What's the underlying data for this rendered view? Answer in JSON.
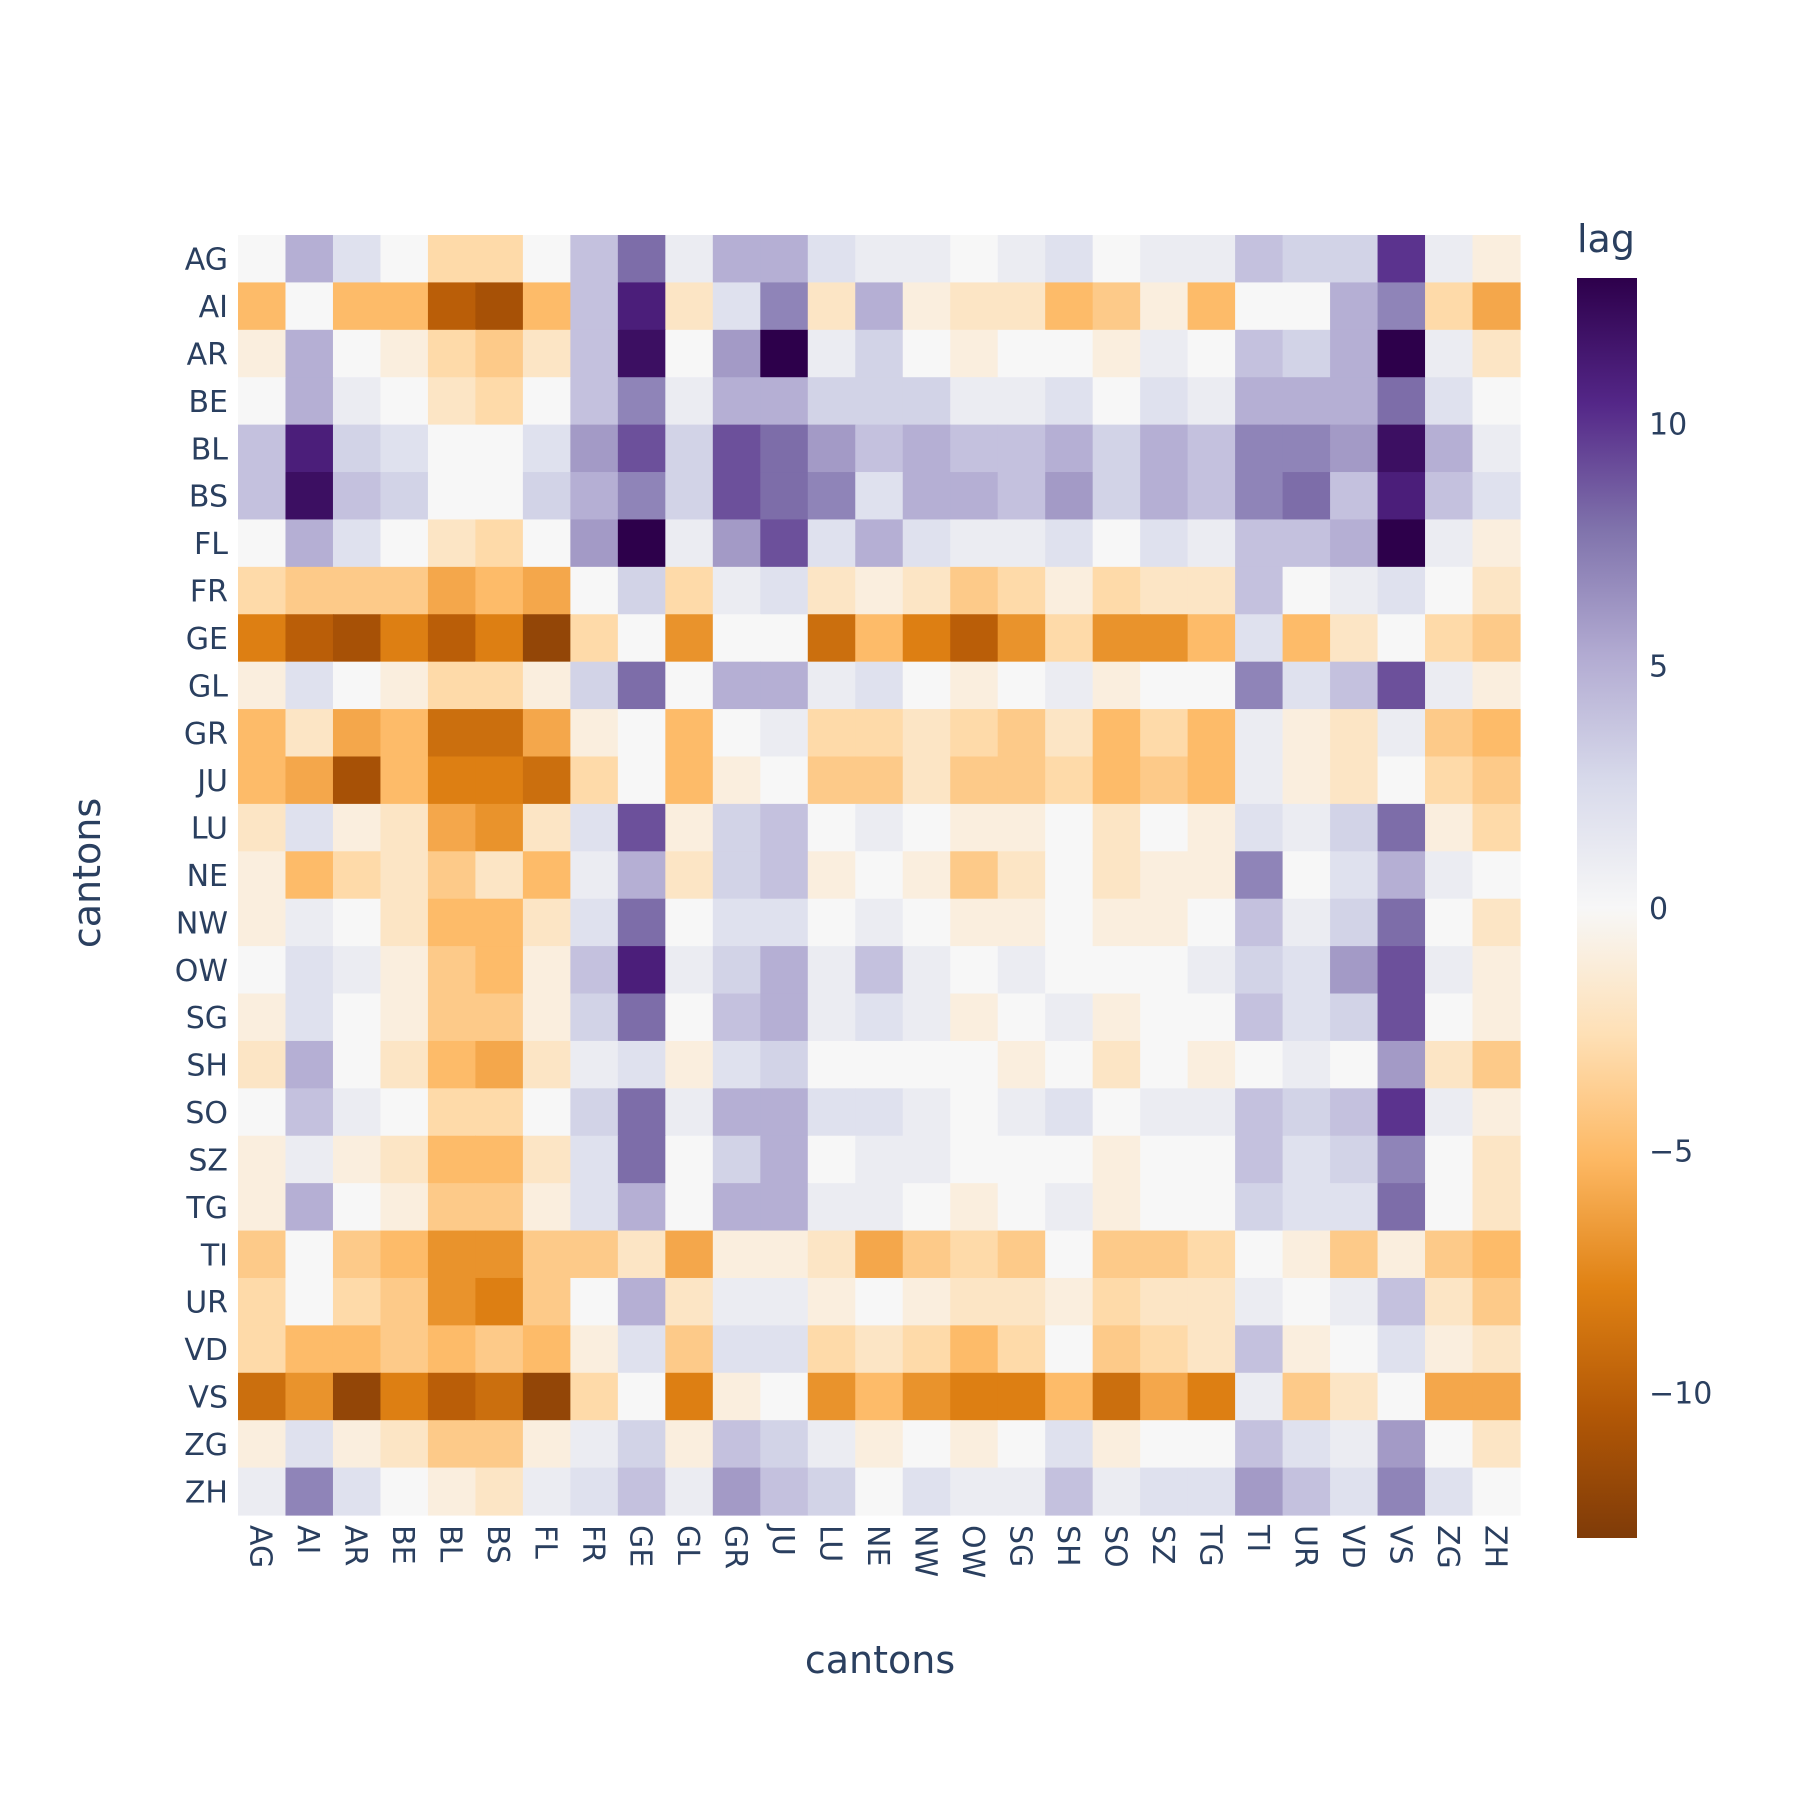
{
  "chart_data": {
    "type": "heatmap",
    "title": "",
    "xlabel": "cantons",
    "ylabel": "cantons",
    "colorbar_title": "lag",
    "colorscale": "PuOr",
    "zlim": [
      -13,
      13
    ],
    "colorbar_ticks": [
      10,
      5,
      0,
      -5,
      -10
    ],
    "colorbar_tick_labels": [
      "10",
      "5",
      "0",
      "−5",
      "−10"
    ],
    "x": [
      "AG",
      "AI",
      "AR",
      "BE",
      "BL",
      "BS",
      "FL",
      "FR",
      "GE",
      "GL",
      "GR",
      "JU",
      "LU",
      "NE",
      "NW",
      "OW",
      "SG",
      "SH",
      "SO",
      "SZ",
      "TG",
      "TI",
      "UR",
      "VD",
      "VS",
      "ZG",
      "ZH"
    ],
    "y": [
      "AG",
      "AI",
      "AR",
      "BE",
      "BL",
      "BS",
      "FL",
      "FR",
      "GE",
      "GL",
      "GR",
      "JU",
      "LU",
      "NE",
      "NW",
      "OW",
      "SG",
      "SH",
      "SO",
      "SZ",
      "TG",
      "TI",
      "UR",
      "VD",
      "VS",
      "ZG",
      "ZH"
    ],
    "z": [
      [
        0,
        5,
        2,
        0,
        -3,
        -3,
        0,
        4,
        8,
        1,
        5,
        5,
        2,
        1,
        1,
        0,
        1,
        2,
        0,
        1,
        1,
        4,
        3,
        3,
        10,
        1,
        -1
      ],
      [
        -5,
        0,
        -5,
        -5,
        -10,
        -11,
        -5,
        4,
        11,
        -2,
        2,
        7,
        -2,
        5,
        -1,
        -2,
        -2,
        -5,
        -4,
        -1,
        -5,
        0,
        0,
        5,
        7,
        -3,
        -6
      ],
      [
        -1,
        5,
        0,
        -1,
        -3,
        -4,
        -2,
        4,
        12,
        0,
        6,
        13,
        1,
        3,
        0,
        -1,
        0,
        0,
        -1,
        1,
        0,
        4,
        3,
        5,
        13,
        1,
        -2
      ],
      [
        0,
        5,
        1,
        0,
        -2,
        -3,
        0,
        4,
        7,
        1,
        5,
        5,
        3,
        3,
        3,
        1,
        1,
        2,
        0,
        2,
        1,
        5,
        5,
        5,
        8,
        2,
        0
      ],
      [
        4,
        11,
        3,
        2,
        0,
        0,
        2,
        6,
        9,
        3,
        9,
        8,
        6,
        4,
        5,
        4,
        4,
        5,
        3,
        5,
        4,
        7,
        7,
        6,
        12,
        5,
        1
      ],
      [
        4,
        12,
        4,
        3,
        0,
        0,
        3,
        5,
        7,
        3,
        9,
        8,
        7,
        2,
        5,
        5,
        4,
        6,
        3,
        5,
        4,
        7,
        8,
        4,
        11,
        4,
        2
      ],
      [
        0,
        5,
        2,
        0,
        -2,
        -3,
        0,
        6,
        13,
        1,
        6,
        9,
        2,
        5,
        2,
        1,
        1,
        2,
        0,
        2,
        1,
        4,
        4,
        5,
        13,
        1,
        -1
      ],
      [
        -3,
        -4,
        -4,
        -4,
        -6,
        -5,
        -6,
        0,
        3,
        -3,
        1,
        2,
        -2,
        -1,
        -2,
        -4,
        -3,
        -1,
        -3,
        -2,
        -2,
        4,
        0,
        1,
        2,
        0,
        -2
      ],
      [
        -8,
        -10,
        -11,
        -8,
        -10,
        -8,
        -12,
        -3,
        0,
        -7,
        0,
        0,
        -9,
        -5,
        -8,
        -10,
        -7,
        -3,
        -7,
        -7,
        -5,
        2,
        -5,
        -2,
        0,
        -3,
        -4
      ],
      [
        -1,
        2,
        0,
        -1,
        -3,
        -3,
        -1,
        3,
        8,
        0,
        5,
        5,
        1,
        2,
        0,
        -1,
        0,
        1,
        -1,
        0,
        0,
        7,
        2,
        4,
        9,
        1,
        -1
      ],
      [
        -5,
        -2,
        -6,
        -5,
        -9,
        -9,
        -6,
        -1,
        0,
        -5,
        0,
        1,
        -3,
        -3,
        -2,
        -3,
        -4,
        -2,
        -5,
        -3,
        -5,
        1,
        -1,
        -2,
        1,
        -4,
        -5
      ],
      [
        -5,
        -6,
        -11,
        -5,
        -8,
        -8,
        -9,
        -3,
        0,
        -5,
        -1,
        0,
        -4,
        -4,
        -2,
        -4,
        -4,
        -3,
        -5,
        -4,
        -5,
        1,
        -1,
        -2,
        0,
        -3,
        -4
      ],
      [
        -2,
        2,
        -1,
        -2,
        -6,
        -7,
        -2,
        2,
        9,
        -1,
        3,
        4,
        0,
        1,
        0,
        -1,
        -1,
        0,
        -2,
        0,
        -1,
        2,
        1,
        3,
        8,
        -1,
        -3
      ],
      [
        -1,
        -5,
        -3,
        -2,
        -4,
        -2,
        -5,
        1,
        5,
        -2,
        3,
        4,
        -1,
        0,
        -1,
        -4,
        -2,
        0,
        -2,
        -1,
        -1,
        7,
        0,
        2,
        5,
        1,
        0
      ],
      [
        -1,
        1,
        0,
        -2,
        -5,
        -5,
        -2,
        2,
        8,
        0,
        2,
        2,
        0,
        1,
        0,
        -1,
        -1,
        0,
        -1,
        -1,
        0,
        4,
        1,
        3,
        8,
        0,
        -2
      ],
      [
        0,
        2,
        1,
        -1,
        -4,
        -5,
        -1,
        4,
        11,
        1,
        3,
        5,
        1,
        4,
        1,
        0,
        1,
        0,
        0,
        0,
        1,
        3,
        2,
        6,
        9,
        1,
        -1
      ],
      [
        -1,
        2,
        0,
        -1,
        -4,
        -4,
        -1,
        3,
        8,
        0,
        4,
        5,
        1,
        2,
        1,
        -1,
        0,
        1,
        -1,
        0,
        0,
        4,
        2,
        3,
        9,
        0,
        -1
      ],
      [
        -2,
        5,
        0,
        -2,
        -5,
        -6,
        -2,
        1,
        2,
        -1,
        2,
        3,
        0,
        0,
        0,
        0,
        -1,
        0,
        -2,
        0,
        -1,
        0,
        1,
        0,
        6,
        -2,
        -4
      ],
      [
        0,
        4,
        1,
        0,
        -3,
        -3,
        0,
        3,
        8,
        1,
        5,
        5,
        2,
        2,
        1,
        0,
        1,
        2,
        0,
        1,
        1,
        4,
        3,
        4,
        10,
        1,
        -1
      ],
      [
        -1,
        1,
        -1,
        -2,
        -5,
        -5,
        -2,
        2,
        8,
        0,
        3,
        5,
        0,
        1,
        1,
        0,
        0,
        0,
        -1,
        0,
        0,
        4,
        2,
        3,
        7,
        0,
        -2
      ],
      [
        -1,
        5,
        0,
        -1,
        -4,
        -4,
        -1,
        2,
        5,
        0,
        5,
        5,
        1,
        1,
        0,
        -1,
        0,
        1,
        -1,
        0,
        0,
        3,
        2,
        2,
        8,
        0,
        -2
      ],
      [
        -4,
        0,
        -4,
        -5,
        -7,
        -7,
        -4,
        -4,
        -2,
        -6,
        -1,
        -1,
        -2,
        -6,
        -4,
        -3,
        -4,
        0,
        -4,
        -4,
        -3,
        0,
        -1,
        -4,
        -1,
        -4,
        -5
      ],
      [
        -3,
        0,
        -3,
        -4,
        -7,
        -8,
        -4,
        0,
        5,
        -2,
        1,
        1,
        -1,
        0,
        -1,
        -2,
        -2,
        -1,
        -3,
        -2,
        -2,
        1,
        0,
        1,
        4,
        -2,
        -4
      ],
      [
        -3,
        -5,
        -5,
        -4,
        -5,
        -4,
        -5,
        -1,
        2,
        -4,
        2,
        2,
        -3,
        -2,
        -3,
        -5,
        -3,
        0,
        -4,
        -3,
        -2,
        4,
        -1,
        0,
        2,
        -1,
        -2
      ],
      [
        -9,
        -7,
        -12,
        -8,
        -10,
        -9,
        -12,
        -3,
        0,
        -8,
        -1,
        0,
        -7,
        -5,
        -7,
        -8,
        -8,
        -5,
        -9,
        -6,
        -8,
        1,
        -4,
        -2,
        0,
        -6,
        -6
      ],
      [
        -1,
        2,
        -1,
        -2,
        -4,
        -4,
        -1,
        1,
        3,
        -1,
        4,
        3,
        1,
        -1,
        0,
        -1,
        0,
        2,
        -1,
        0,
        0,
        4,
        2,
        1,
        6,
        0,
        -2
      ],
      [
        1,
        7,
        2,
        0,
        -1,
        -2,
        1,
        2,
        4,
        1,
        6,
        4,
        3,
        0,
        2,
        1,
        1,
        4,
        1,
        2,
        2,
        6,
        4,
        2,
        7,
        2,
        0
      ]
    ]
  }
}
